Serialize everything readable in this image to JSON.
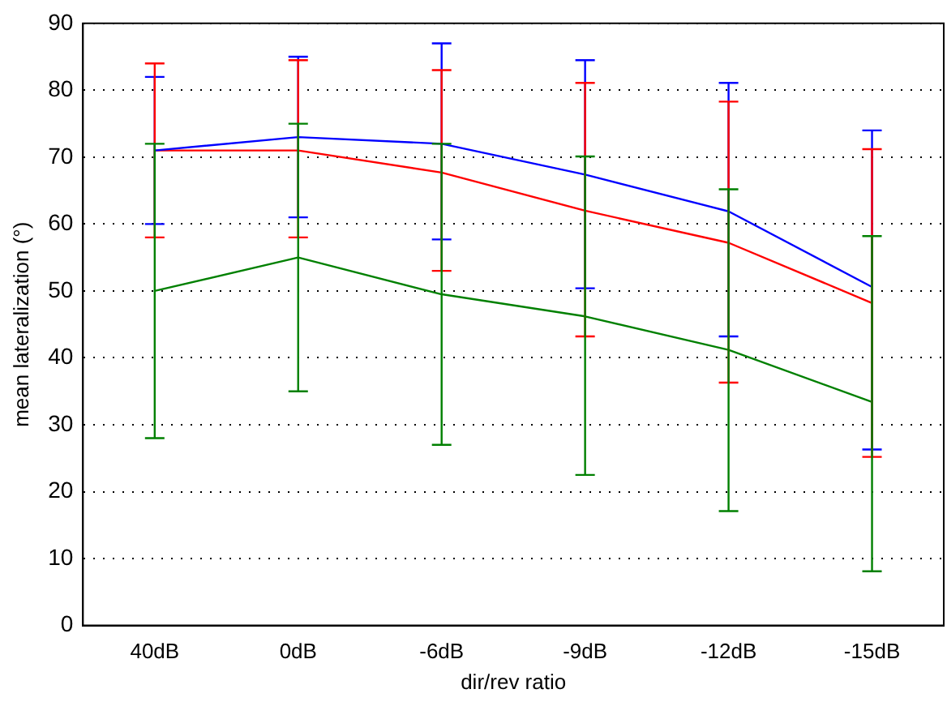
{
  "chart_data": {
    "type": "line",
    "xlabel": "dir/rev ratio",
    "ylabel": "mean lateralization (°)",
    "categories": [
      "40dB",
      "0dB",
      "-6dB",
      "-9dB",
      "-12dB",
      "-15dB"
    ],
    "series": [
      {
        "color": "#0000ff",
        "values": [
          71,
          73,
          72,
          67.4,
          61.9,
          50.6
        ],
        "errors": [
          [
            60,
            82
          ],
          [
            61,
            85
          ],
          [
            57.7,
            87
          ],
          [
            50.4,
            84.5
          ],
          [
            43.2,
            81.1
          ],
          [
            26.3,
            74
          ]
        ]
      },
      {
        "color": "#ff0000",
        "values": [
          71,
          71,
          67.7,
          62,
          57.2,
          48.2
        ],
        "errors": [
          [
            58,
            84
          ],
          [
            58,
            84.5
          ],
          [
            53,
            83
          ],
          [
            43.2,
            81.1
          ],
          [
            36.3,
            78.3
          ],
          [
            25.2,
            71.2
          ]
        ]
      },
      {
        "color": "#008000",
        "values": [
          50,
          55,
          49.5,
          46.2,
          41.2,
          33.4
        ],
        "errors": [
          [
            28,
            72
          ],
          [
            35,
            75
          ],
          [
            27,
            72
          ],
          [
            22.5,
            70.1
          ],
          [
            17.1,
            65.2
          ],
          [
            8.1,
            58.2
          ]
        ]
      }
    ],
    "ylim": [
      0,
      90
    ],
    "yticks": [
      0,
      10,
      20,
      30,
      40,
      50,
      60,
      70,
      80,
      90
    ],
    "grid": "y",
    "legend": false,
    "marker": "none",
    "line_style": "solid"
  }
}
